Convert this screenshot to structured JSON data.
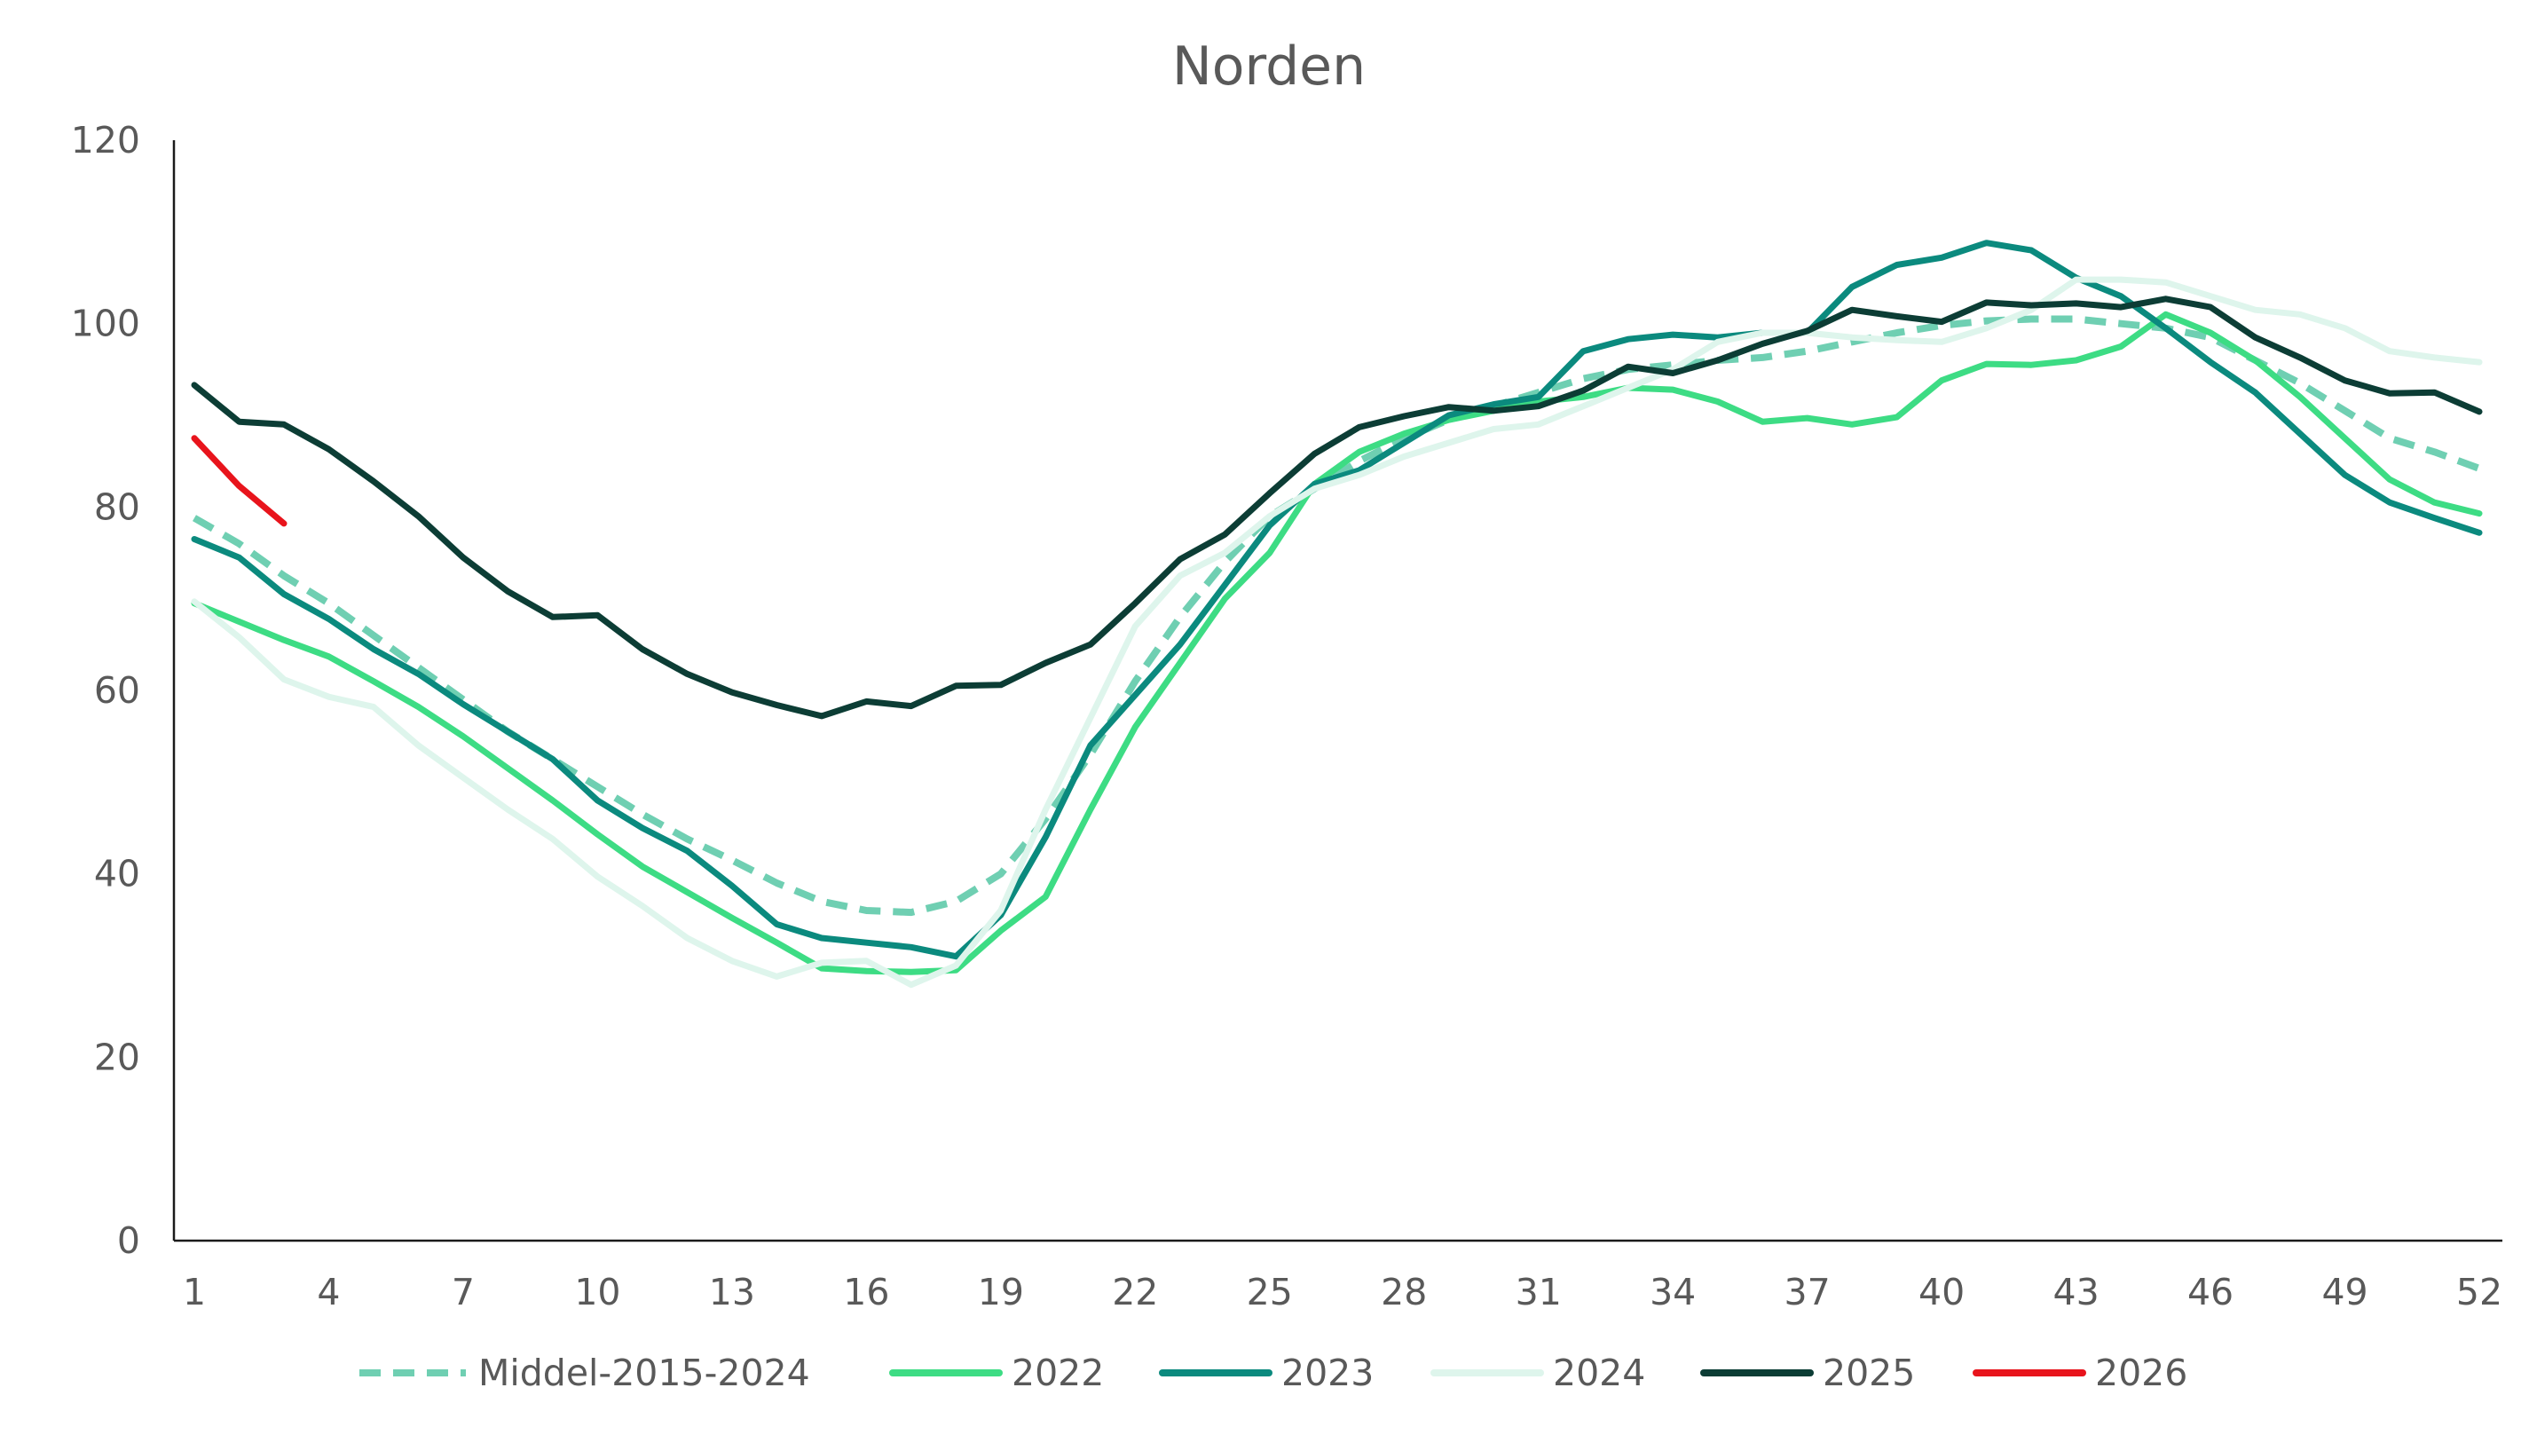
{
  "chart_data": {
    "type": "line",
    "title": "Norden",
    "xlabel": "",
    "ylabel": "",
    "xlim": [
      1,
      52
    ],
    "ylim": [
      0,
      120
    ],
    "x_ticks": [
      1,
      4,
      7,
      10,
      13,
      16,
      19,
      22,
      25,
      28,
      31,
      34,
      37,
      40,
      43,
      46,
      49,
      52
    ],
    "y_ticks": [
      0,
      20,
      40,
      60,
      80,
      100,
      120
    ],
    "grid": false,
    "legend_position": "bottom",
    "series": [
      {
        "name": "Middel-2015-2024",
        "color": "#6fcfb2",
        "dashed": true,
        "x": [
          1,
          2,
          3,
          4,
          5,
          6,
          7,
          8,
          9,
          10,
          11,
          12,
          13,
          14,
          15,
          16,
          17,
          18,
          19,
          20,
          21,
          22,
          23,
          24,
          25,
          26,
          27,
          28,
          29,
          30,
          31,
          32,
          33,
          34,
          35,
          36,
          37,
          38,
          39,
          40,
          41,
          42,
          43,
          44,
          45,
          46,
          47,
          48,
          49,
          50,
          51,
          52
        ],
        "values": [
          78.8,
          76.0,
          72.5,
          69.5,
          66.0,
          62.5,
          59.0,
          55.5,
          52.5,
          49.5,
          46.5,
          43.8,
          41.5,
          39.0,
          37.0,
          36.0,
          35.8,
          37.0,
          40.0,
          46.0,
          53.0,
          61.0,
          68.0,
          74.0,
          79.0,
          82.0,
          85.0,
          87.5,
          89.5,
          91.0,
          92.5,
          94.0,
          95.0,
          95.5,
          96.0,
          96.3,
          97.0,
          98.0,
          99.0,
          99.8,
          100.3,
          100.5,
          100.5,
          100.0,
          99.5,
          98.5,
          96.0,
          93.5,
          90.5,
          87.5,
          86.0,
          84.2
        ]
      },
      {
        "name": "2022",
        "color": "#3ddc84",
        "dashed": false,
        "x": [
          1,
          2,
          3,
          4,
          5,
          6,
          7,
          8,
          9,
          10,
          11,
          12,
          13,
          14,
          15,
          16,
          17,
          18,
          19,
          20,
          21,
          22,
          23,
          24,
          25,
          26,
          27,
          28,
          29,
          30,
          31,
          32,
          33,
          34,
          35,
          36,
          37,
          38,
          39,
          40,
          41,
          42,
          43,
          44,
          45,
          46,
          47,
          48,
          49,
          50,
          51,
          52
        ],
        "values": [
          69.5,
          67.5,
          65.5,
          63.7,
          61.0,
          58.2,
          55.0,
          51.5,
          48.0,
          44.3,
          40.8,
          38.0,
          35.2,
          32.5,
          29.7,
          29.4,
          29.3,
          29.5,
          33.8,
          37.5,
          47.0,
          56.0,
          63.0,
          70.0,
          75.0,
          82.5,
          86.0,
          88.0,
          89.5,
          90.5,
          91.5,
          92.0,
          93.0,
          92.8,
          91.5,
          89.3,
          89.7,
          89.0,
          89.8,
          93.8,
          95.6,
          95.5,
          96.0,
          97.5,
          101.0,
          99.0,
          96.0,
          92.0,
          87.5,
          83.0,
          80.5,
          79.3
        ]
      },
      {
        "name": "2023",
        "color": "#0b8a7e",
        "dashed": false,
        "x": [
          1,
          2,
          3,
          4,
          5,
          6,
          7,
          8,
          9,
          10,
          11,
          12,
          13,
          14,
          15,
          16,
          17,
          18,
          19,
          20,
          21,
          22,
          23,
          24,
          25,
          26,
          27,
          28,
          29,
          30,
          31,
          32,
          33,
          34,
          35,
          36,
          37,
          38,
          39,
          40,
          41,
          42,
          43,
          44,
          45,
          46,
          47,
          48,
          49,
          50,
          51,
          52
        ],
        "values": [
          76.5,
          74.5,
          70.5,
          67.8,
          64.5,
          61.8,
          58.5,
          55.5,
          52.5,
          48.0,
          45.0,
          42.5,
          38.7,
          34.5,
          33.0,
          32.5,
          32.0,
          31.0,
          35.5,
          44.0,
          54.0,
          59.5,
          65.0,
          71.5,
          78.0,
          82.5,
          84.0,
          87.0,
          90.0,
          91.2,
          92.0,
          97.0,
          98.3,
          98.8,
          98.5,
          99.0,
          99.0,
          104.0,
          106.4,
          107.2,
          108.8,
          108.0,
          105.0,
          103.0,
          99.5,
          95.8,
          92.5,
          88.0,
          83.5,
          80.5,
          78.8,
          77.2
        ]
      },
      {
        "name": "2024",
        "color": "#def5ec",
        "dashed": false,
        "x": [
          1,
          2,
          3,
          4,
          5,
          6,
          7,
          8,
          9,
          10,
          11,
          12,
          13,
          14,
          15,
          16,
          17,
          18,
          19,
          20,
          21,
          22,
          23,
          24,
          25,
          26,
          27,
          28,
          29,
          30,
          31,
          32,
          33,
          34,
          35,
          36,
          37,
          38,
          39,
          40,
          41,
          42,
          43,
          44,
          45,
          46,
          47,
          48,
          49,
          50,
          51,
          52
        ],
        "values": [
          69.7,
          65.8,
          61.2,
          59.3,
          58.2,
          54.0,
          50.5,
          47.0,
          43.8,
          39.7,
          36.5,
          33.0,
          30.5,
          28.8,
          30.3,
          30.5,
          27.9,
          30.0,
          36.0,
          47.0,
          57.0,
          67.0,
          72.5,
          75.0,
          79.0,
          82.0,
          83.5,
          85.5,
          87.0,
          88.5,
          89.0,
          91.0,
          93.0,
          95.0,
          98.0,
          99.0,
          99.0,
          98.5,
          98.2,
          98.0,
          99.5,
          101.5,
          104.8,
          104.8,
          104.5,
          103.0,
          101.5,
          101.0,
          99.5,
          97.0,
          96.3,
          95.8
        ]
      },
      {
        "name": "2025",
        "color": "#0c3d35",
        "dashed": false,
        "x": [
          1,
          2,
          3,
          4,
          5,
          6,
          7,
          8,
          9,
          10,
          11,
          12,
          13,
          14,
          15,
          16,
          17,
          18,
          19,
          20,
          21,
          22,
          23,
          24,
          25,
          26,
          27,
          28,
          29,
          30,
          31,
          32,
          33,
          34,
          35,
          36,
          37,
          38,
          39,
          40,
          41,
          42,
          43,
          44,
          45,
          46,
          47,
          48,
          49,
          50,
          51,
          52
        ],
        "values": [
          93.3,
          89.3,
          89.0,
          86.3,
          82.8,
          79.0,
          74.5,
          70.8,
          68.0,
          68.2,
          64.5,
          61.8,
          59.8,
          58.4,
          57.2,
          58.8,
          58.3,
          60.5,
          60.6,
          63.0,
          65.0,
          69.5,
          74.3,
          77.0,
          81.5,
          85.8,
          88.7,
          89.9,
          90.9,
          90.5,
          91.0,
          92.7,
          95.3,
          94.6,
          96.0,
          97.8,
          99.2,
          101.5,
          100.8,
          100.2,
          102.3,
          102.0,
          102.2,
          101.8,
          102.7,
          101.8,
          98.5,
          96.3,
          93.8,
          92.4,
          92.5,
          90.4
        ]
      },
      {
        "name": "2026",
        "color": "#e8141c",
        "dashed": false,
        "x": [
          1,
          2,
          3
        ],
        "values": [
          87.5,
          82.3,
          78.2
        ]
      }
    ]
  }
}
